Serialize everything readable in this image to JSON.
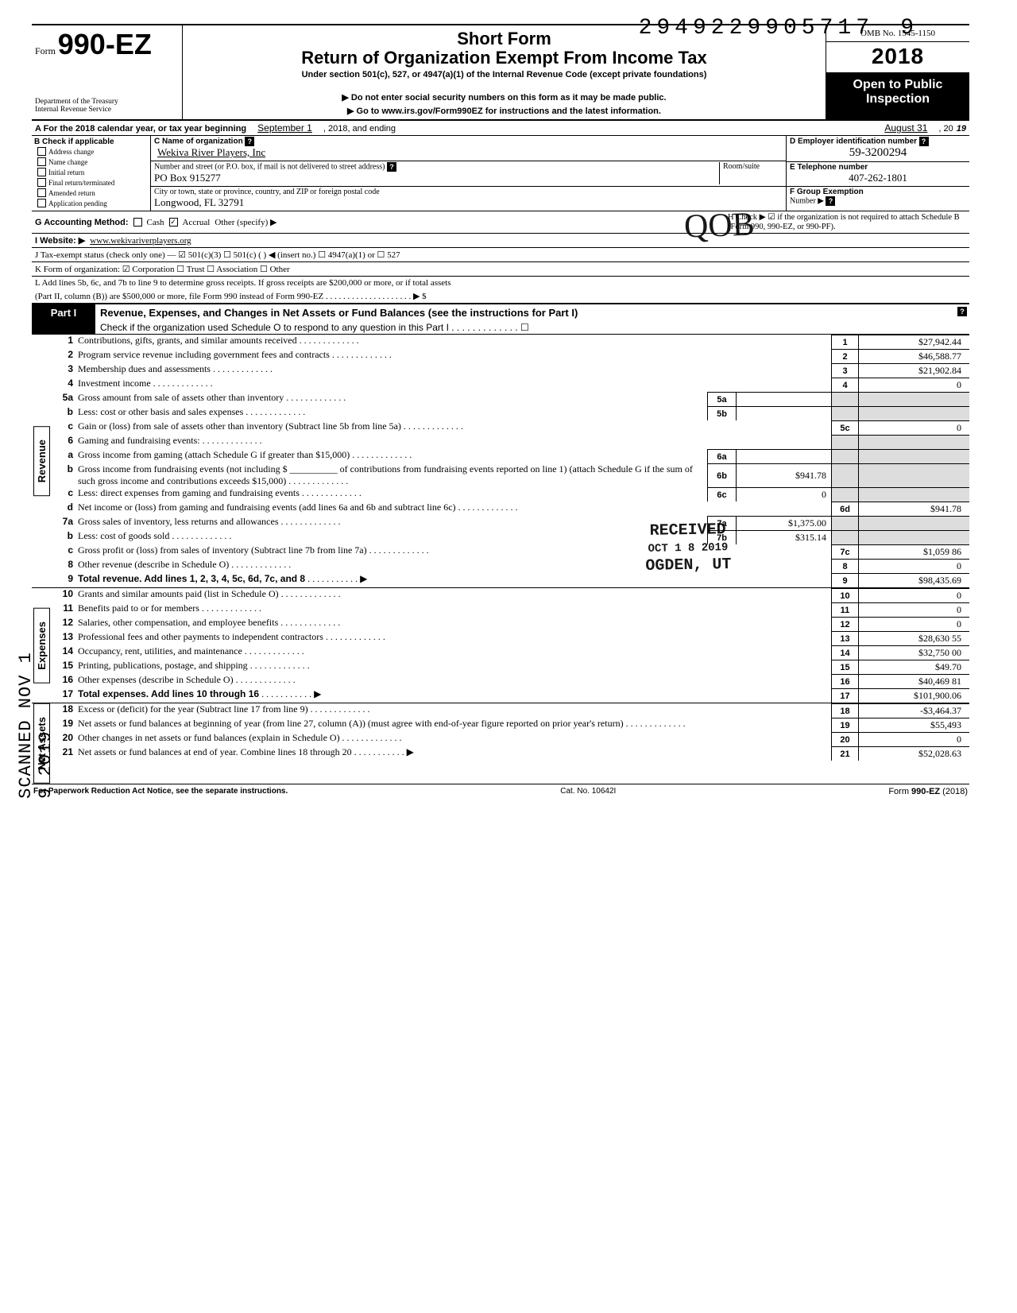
{
  "dln": "2949229905717",
  "dln_suffix": "9",
  "form": {
    "prefix": "Form",
    "number": "990-EZ",
    "title1": "Short Form",
    "title2": "Return of Organization Exempt From Income Tax",
    "subtitle": "Under section 501(c), 527, or 4947(a)(1) of the Internal Revenue Code (except private foundations)",
    "instruct1": "▶ Do not enter social security numbers on this form as it may be made public.",
    "instruct2": "▶ Go to www.irs.gov/Form990EZ for instructions and the latest information.",
    "dept1": "Department of the Treasury",
    "dept2": "Internal Revenue Service"
  },
  "rightHeader": {
    "omb": "OMB No. 1545-1150",
    "year_prefix": "2",
    "year_mid": "01",
    "year_last": "8",
    "year_display": "2018",
    "public1": "Open to Public",
    "public2": "Inspection"
  },
  "lineA": {
    "prefix": "A  For the 2018 calendar year, or tax year beginning",
    "begin": "September 1",
    "mid": ", 2018, and ending",
    "end": "August 31",
    "y": ", 20",
    "yy": "19"
  },
  "B": {
    "hdr": "B  Check if applicable",
    "opts": [
      "Address change",
      "Name change",
      "Initial return",
      "Final return/terminated",
      "Amended return",
      "Application pending"
    ]
  },
  "C": {
    "name_lab": "C  Name of organization",
    "name": "Wekiva River Players, Inc",
    "addr_lab": "Number and street (or P.O. box, if mail is not delivered to street address)",
    "room_lab": "Room/suite",
    "addr": "PO Box 915277",
    "city_lab": "City or town, state or province, country, and ZIP or foreign postal code",
    "city": "Longwood, FL  32791"
  },
  "D": {
    "lab": "D Employer identification number",
    "val": "59-3200294"
  },
  "E": {
    "lab": "E Telephone number",
    "val": "407-262-1801"
  },
  "F": {
    "lab": "F Group Exemption",
    "lab2": "Number  ▶"
  },
  "G": {
    "lab": "G  Accounting Method:",
    "cash": "Cash",
    "accrual": "Accrual",
    "other": "Other (specify) ▶"
  },
  "H": {
    "text": "H  Check ▶ ☑ if the organization is not required to attach Schedule B (Form 990, 990-EZ, or 990-PF)."
  },
  "I": {
    "lab": "I   Website: ▶",
    "val": "www.wekivariverplayers.org"
  },
  "J": {
    "text": "J  Tax-exempt status (check only one) — ☑ 501(c)(3)    ☐ 501(c) (        ) ◀ (insert no.) ☐ 4947(a)(1) or   ☐ 527"
  },
  "K": {
    "text": "K  Form of organization:   ☑ Corporation     ☐ Trust     ☐ Association     ☐ Other"
  },
  "L": {
    "text1": "L  Add lines 5b, 6c, and 7b to line 9 to determine gross receipts. If gross receipts are $200,000 or more, or if total assets",
    "text2": "(Part II, column (B)) are $500,000 or more, file Form 990 instead of Form 990-EZ  . . . . . . . . . . . . . . . . . . . .  ▶   $"
  },
  "part1": {
    "tag": "Part I",
    "title": "Revenue, Expenses, and Changes in Net Assets or Fund Balances (see the instructions for Part I)",
    "check": "Check if the organization used Schedule O to respond to any question in this Part I  . . . . . . . . . . . . .  ☐"
  },
  "vtabs": {
    "rev": "Revenue",
    "exp": "Expenses",
    "na": "Net Assets"
  },
  "lines": [
    {
      "n": "1",
      "d": "Contributions, gifts, grants, and similar amounts received",
      "r": "1",
      "v": "$27,942.44"
    },
    {
      "n": "2",
      "d": "Program service revenue including government fees and contracts",
      "r": "2",
      "v": "$46,588.77"
    },
    {
      "n": "3",
      "d": "Membership dues and assessments",
      "r": "3",
      "v": "$21,902.84"
    },
    {
      "n": "4",
      "d": "Investment income",
      "r": "4",
      "v": "0"
    },
    {
      "n": "5a",
      "d": "Gross amount from sale of assets other than inventory",
      "sc": "5a",
      "sv": ""
    },
    {
      "n": "b",
      "d": "Less: cost or other basis and sales expenses",
      "sc": "5b",
      "sv": ""
    },
    {
      "n": "c",
      "d": "Gain or (loss) from sale of assets other than inventory (Subtract line 5b from line 5a)",
      "r": "5c",
      "v": "0"
    },
    {
      "n": "6",
      "d": "Gaming and fundraising events:"
    },
    {
      "n": "a",
      "d": "Gross income from gaming (attach Schedule G if greater than $15,000)",
      "sc": "6a",
      "sv": ""
    },
    {
      "n": "b",
      "d": "Gross income from fundraising events (not including  $ __________ of contributions from fundraising events reported on line 1) (attach Schedule G if the sum of such gross income and contributions exceeds $15,000)",
      "sc": "6b",
      "sv": "$941.78"
    },
    {
      "n": "c",
      "d": "Less: direct expenses from gaming and fundraising events",
      "sc": "6c",
      "sv": "0"
    },
    {
      "n": "d",
      "d": "Net income or (loss) from gaming and fundraising events (add lines 6a and 6b and subtract line 6c)",
      "r": "6d",
      "v": "$941.78"
    },
    {
      "n": "7a",
      "d": "Gross sales of inventory, less returns and allowances",
      "sc": "7a",
      "sv": "$1,375.00"
    },
    {
      "n": "b",
      "d": "Less: cost of goods sold",
      "sc": "7b",
      "sv": "$315.14"
    },
    {
      "n": "c",
      "d": "Gross profit or (loss) from sales of inventory (Subtract line 7b from line 7a)",
      "r": "7c",
      "v": "$1,059 86"
    },
    {
      "n": "8",
      "d": "Other revenue (describe in Schedule O)",
      "r": "8",
      "v": "0"
    },
    {
      "n": "9",
      "d": "Total revenue. Add lines 1, 2, 3, 4, 5c, 6d, 7c, and 8",
      "bold": true,
      "tri": true,
      "r": "9",
      "v": "$98,435.69"
    },
    {
      "n": "10",
      "d": "Grants and similar amounts paid (list in Schedule O)",
      "r": "10",
      "v": "0"
    },
    {
      "n": "11",
      "d": "Benefits paid to or for members",
      "r": "11",
      "v": "0"
    },
    {
      "n": "12",
      "d": "Salaries, other compensation, and employee benefits",
      "r": "12",
      "v": "0"
    },
    {
      "n": "13",
      "d": "Professional fees and other payments to independent contractors",
      "r": "13",
      "v": "$28,630 55"
    },
    {
      "n": "14",
      "d": "Occupancy, rent, utilities, and maintenance",
      "r": "14",
      "v": "$32,750 00"
    },
    {
      "n": "15",
      "d": "Printing, publications, postage, and shipping",
      "r": "15",
      "v": "$49.70"
    },
    {
      "n": "16",
      "d": "Other expenses (describe in Schedule O)",
      "r": "16",
      "v": "$40,469 81"
    },
    {
      "n": "17",
      "d": "Total expenses. Add lines 10 through 16",
      "bold": true,
      "tri": true,
      "r": "17",
      "v": "$101,900.06"
    },
    {
      "n": "18",
      "d": "Excess or (deficit) for the year (Subtract line 17 from line 9)",
      "r": "18",
      "v": "-$3,464.37"
    },
    {
      "n": "19",
      "d": "Net assets or fund balances at beginning of year (from line 27, column (A)) (must agree with end-of-year figure reported on prior year's return)",
      "r": "19",
      "v": "$55,493"
    },
    {
      "n": "20",
      "d": "Other changes in net assets or fund balances (explain in Schedule O)",
      "r": "20",
      "v": "0"
    },
    {
      "n": "21",
      "d": "Net assets or fund balances at end of year. Combine lines 18 through 20",
      "tri": true,
      "r": "21",
      "v": "$52,028.63"
    }
  ],
  "footer": {
    "l": "For Paperwork Reduction Act Notice, see the separate instructions.",
    "c": "Cat. No. 10642I",
    "r": "Form 990-EZ (2018)"
  },
  "sideStamp": "SCANNED NOV 1 9 2019",
  "recStamp": {
    "l1": "RECEIVED",
    "l2": "OCT 1 8 2019",
    "l3": "OGDEN, UT"
  },
  "initials": "QOB"
}
